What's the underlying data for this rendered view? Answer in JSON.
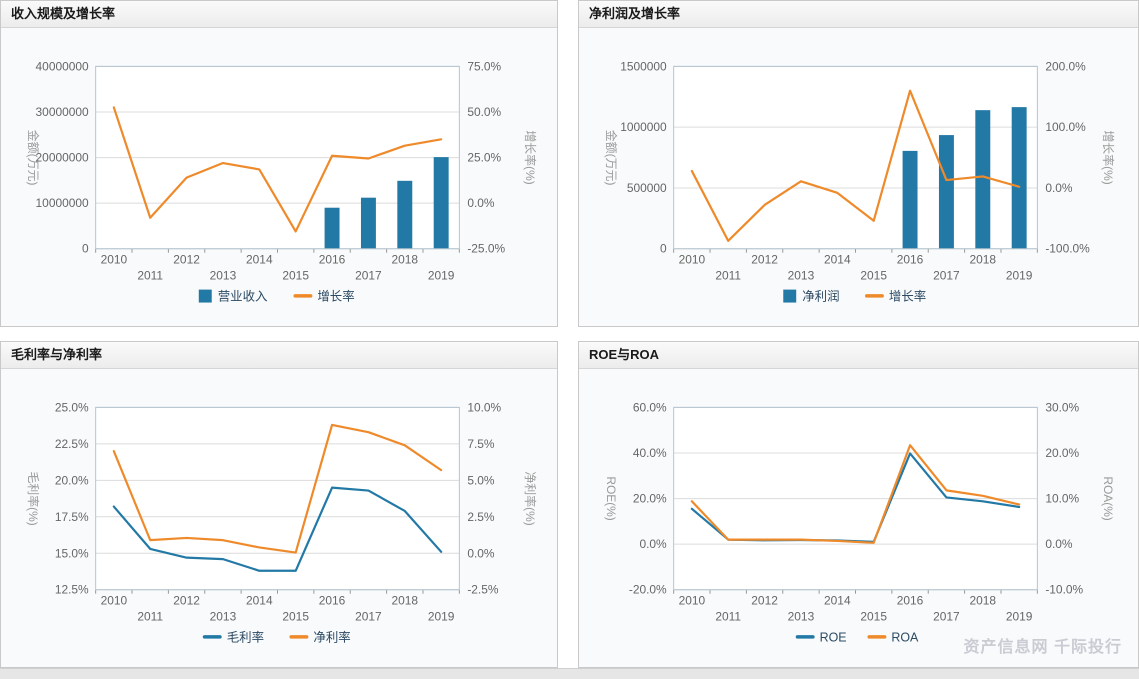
{
  "page": {
    "watermark": "资产信息网 千际投行",
    "colors": {
      "bar_blue": "#2379a6",
      "line_orange": "#ef8a2b",
      "line_blue": "#2379a6",
      "grid": "#dcdcdc",
      "plot_border": "#b4c5d0",
      "tick_text": "#666666"
    }
  },
  "chart_data": [
    {
      "type": "bar",
      "title": "收入规模及增长率",
      "categories": [
        "2010",
        "2011",
        "2012",
        "2013",
        "2014",
        "2015",
        "2016",
        "2017",
        "2018",
        "2019"
      ],
      "left_axis": {
        "title": "金额(万元)",
        "min": 0,
        "max": 40000000,
        "labels": [
          "0",
          "10000000",
          "20000000",
          "30000000",
          "40000000"
        ]
      },
      "right_axis": {
        "title": "增长率(%)",
        "min": -25,
        "max": 75,
        "labels": [
          "-25.0%",
          "0.0%",
          "25.0%",
          "50.0%",
          "75.0%"
        ]
      },
      "series": [
        {
          "name": "营业收入",
          "type": "bar",
          "axis": "left",
          "color": "#2379a6",
          "values": [
            null,
            null,
            null,
            null,
            null,
            null,
            9000000,
            11200000,
            14900000,
            20100000
          ]
        },
        {
          "name": "增长率",
          "type": "line",
          "axis": "right",
          "color": "#ef8a2b",
          "values": [
            52.5,
            -8,
            14,
            22,
            18.5,
            -15.5,
            26,
            24.5,
            31.5,
            35
          ]
        }
      ]
    },
    {
      "type": "bar",
      "title": "净利润及增长率",
      "categories": [
        "2010",
        "2011",
        "2012",
        "2013",
        "2014",
        "2015",
        "2016",
        "2017",
        "2018",
        "2019"
      ],
      "left_axis": {
        "title": "金额(万元)",
        "min": 0,
        "max": 1500000,
        "labels": [
          "0",
          "500000",
          "1000000",
          "1500000"
        ]
      },
      "right_axis": {
        "title": "增长率(%)",
        "min": -100,
        "max": 200,
        "labels": [
          "-100.0%",
          "0.0%",
          "100.0%",
          "200.0%"
        ]
      },
      "series": [
        {
          "name": "净利润",
          "type": "bar",
          "axis": "left",
          "color": "#2379a6",
          "values": [
            null,
            null,
            null,
            null,
            null,
            null,
            805000,
            935000,
            1140000,
            1165000
          ]
        },
        {
          "name": "增长率",
          "type": "line",
          "axis": "right",
          "color": "#ef8a2b",
          "values": [
            28,
            -87,
            -28,
            11,
            -8,
            -54,
            160,
            13,
            19,
            2
          ]
        }
      ]
    },
    {
      "type": "line",
      "title": "毛利率与净利率",
      "categories": [
        "2010",
        "2011",
        "2012",
        "2013",
        "2014",
        "2015",
        "2016",
        "2017",
        "2018",
        "2019"
      ],
      "left_axis": {
        "title": "毛利率(%)",
        "min": 12.5,
        "max": 25,
        "labels": [
          "12.5%",
          "15.0%",
          "17.5%",
          "20.0%",
          "22.5%",
          "25.0%"
        ]
      },
      "right_axis": {
        "title": "净利率(%)",
        "min": -2.5,
        "max": 10,
        "labels": [
          "-2.5%",
          "0.0%",
          "2.5%",
          "5.0%",
          "7.5%",
          "10.0%"
        ]
      },
      "series": [
        {
          "name": "毛利率",
          "type": "line",
          "axis": "left",
          "color": "#2379a6",
          "values": [
            18.2,
            15.3,
            14.7,
            14.6,
            13.8,
            13.8,
            19.5,
            19.3,
            17.9,
            15.1
          ]
        },
        {
          "name": "净利率",
          "type": "line",
          "axis": "right",
          "color": "#ef8a2b",
          "values": [
            7.0,
            0.9,
            1.05,
            0.9,
            0.4,
            0.05,
            8.8,
            8.3,
            7.4,
            5.7
          ]
        }
      ]
    },
    {
      "type": "line",
      "title": "ROE与ROA",
      "categories": [
        "2010",
        "2011",
        "2012",
        "2013",
        "2014",
        "2015",
        "2016",
        "2017",
        "2018",
        "2019"
      ],
      "left_axis": {
        "title": "ROE(%)",
        "min": -20,
        "max": 60,
        "labels": [
          "-20.0%",
          "0.0%",
          "20.0%",
          "40.0%",
          "60.0%"
        ]
      },
      "right_axis": {
        "title": "ROA(%)",
        "min": -10,
        "max": 30,
        "labels": [
          "-10.0%",
          "0.0%",
          "10.0%",
          "20.0%",
          "30.0%"
        ]
      },
      "series": [
        {
          "name": "ROE",
          "type": "line",
          "axis": "left",
          "color": "#2379a6",
          "values": [
            15.5,
            2.0,
            1.7,
            1.8,
            1.6,
            1.0,
            39.8,
            20.5,
            18.8,
            16.3
          ]
        },
        {
          "name": "ROA",
          "type": "line",
          "axis": "right",
          "color": "#ef8a2b",
          "values": [
            9.4,
            1.0,
            1.0,
            1.0,
            0.7,
            0.3,
            21.7,
            11.8,
            10.6,
            8.7
          ]
        }
      ]
    }
  ]
}
